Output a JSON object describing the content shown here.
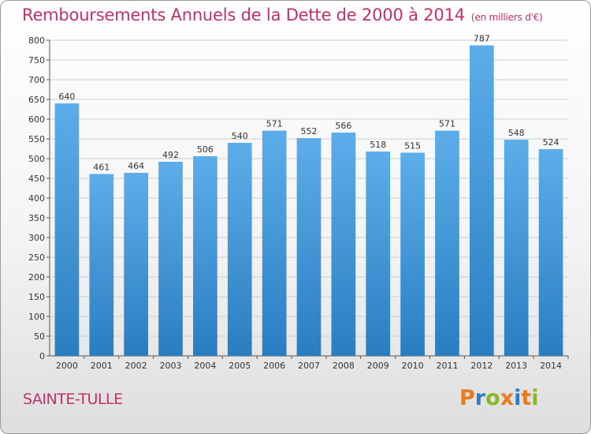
{
  "header": {
    "title": "Remboursements Annuels de la Dette de 2000 à 2014",
    "unit": "(en milliers d'€)"
  },
  "commune": "SAINTE-TULLE",
  "logo": {
    "letters": [
      "P",
      "r",
      "o",
      "x",
      "i",
      "t",
      "i"
    ],
    "colors": [
      "#e87b1e",
      "#2a7cc9",
      "#86b82a",
      "#e87b1e",
      "#2a7cc9",
      "#e87b1e",
      "#86b82a"
    ]
  },
  "colors": {
    "bar_top": "#5dadea",
    "bar_bottom": "#2a7ec0",
    "grid": "#cfcfcf",
    "title": "#c0306a"
  },
  "chart_data": {
    "type": "bar",
    "title": "Remboursements Annuels de la Dette de 2000 à 2014",
    "xlabel": "",
    "ylabel": "",
    "categories": [
      "2000",
      "2001",
      "2002",
      "2003",
      "2004",
      "2005",
      "2006",
      "2007",
      "2008",
      "2009",
      "2010",
      "2011",
      "2012",
      "2013",
      "2014"
    ],
    "values": [
      640,
      461,
      464,
      492,
      506,
      540,
      571,
      552,
      566,
      518,
      515,
      571,
      787,
      548,
      524
    ],
    "ylim": [
      0,
      800
    ],
    "yticks": [
      0,
      50,
      100,
      150,
      200,
      250,
      300,
      350,
      400,
      450,
      500,
      550,
      600,
      650,
      700,
      750,
      800
    ],
    "grid": true,
    "data_labels": true
  }
}
